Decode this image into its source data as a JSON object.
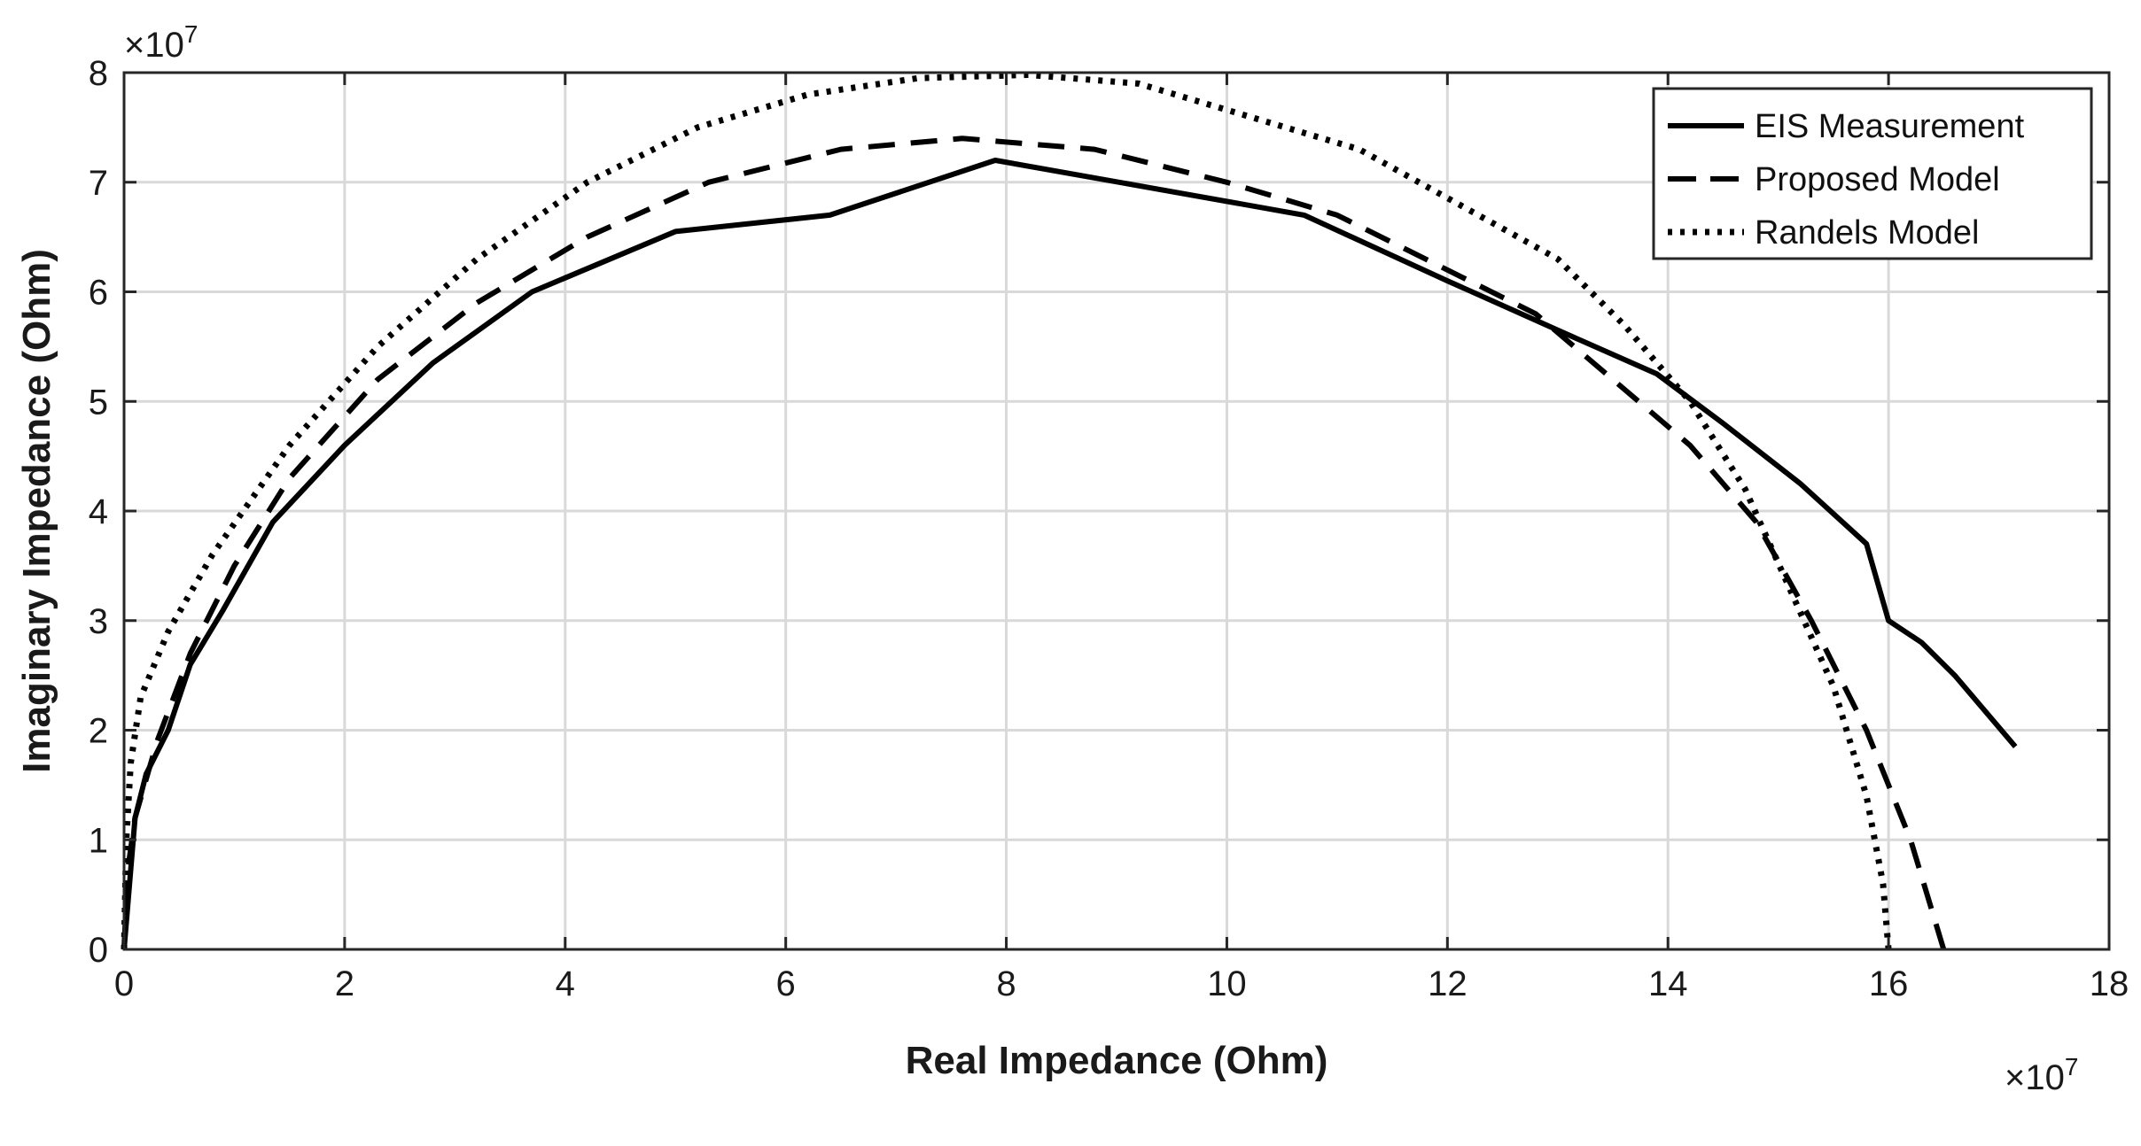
{
  "chart_data": {
    "type": "line",
    "title": "",
    "xlabel": "Real Impedance (Ohm)",
    "ylabel": "Imaginary Impedance (Ohm)",
    "x_multiplier": "×10",
    "x_exponent": "7",
    "y_multiplier": "×10",
    "y_exponent": "7",
    "xlim": [
      0,
      18
    ],
    "ylim": [
      0,
      8
    ],
    "xticks": [
      "0",
      "2",
      "4",
      "6",
      "8",
      "10",
      "12",
      "14",
      "16",
      "18"
    ],
    "yticks": [
      "0",
      "1",
      "2",
      "3",
      "4",
      "5",
      "6",
      "7",
      "8"
    ],
    "grid": true,
    "legend_position": "top-right",
    "series": [
      {
        "name": "EIS Measurement",
        "style": "solid",
        "color": "#000000",
        "points": [
          [
            0,
            0
          ],
          [
            0.05,
            0.6
          ],
          [
            0.1,
            1.2
          ],
          [
            0.2,
            1.6
          ],
          [
            0.4,
            2.0
          ],
          [
            0.6,
            2.6
          ],
          [
            0.9,
            3.1
          ],
          [
            1.35,
            3.9
          ],
          [
            2.0,
            4.6
          ],
          [
            2.8,
            5.35
          ],
          [
            3.7,
            6.0
          ],
          [
            5.0,
            6.55
          ],
          [
            6.4,
            6.7
          ],
          [
            7.9,
            7.2
          ],
          [
            9.3,
            6.95
          ],
          [
            10.7,
            6.7
          ],
          [
            12.0,
            6.1
          ],
          [
            13.0,
            5.65
          ],
          [
            13.9,
            5.25
          ],
          [
            14.5,
            4.8
          ],
          [
            15.2,
            4.25
          ],
          [
            15.8,
            3.7
          ],
          [
            16.0,
            3.0
          ],
          [
            16.3,
            2.8
          ],
          [
            16.6,
            2.5
          ],
          [
            17.15,
            1.85
          ]
        ]
      },
      {
        "name": "Proposed Model",
        "style": "dashed",
        "color": "#000000",
        "points": [
          [
            0,
            0
          ],
          [
            0.03,
            0.7
          ],
          [
            0.1,
            1.2
          ],
          [
            0.3,
            1.9
          ],
          [
            0.6,
            2.7
          ],
          [
            1.0,
            3.5
          ],
          [
            1.5,
            4.3
          ],
          [
            2.3,
            5.2
          ],
          [
            3.2,
            5.9
          ],
          [
            4.2,
            6.5
          ],
          [
            5.3,
            7.0
          ],
          [
            6.5,
            7.3
          ],
          [
            7.6,
            7.4
          ],
          [
            8.8,
            7.3
          ],
          [
            10.0,
            7.0
          ],
          [
            11.0,
            6.7
          ],
          [
            12.0,
            6.2
          ],
          [
            12.8,
            5.8
          ],
          [
            13.5,
            5.2
          ],
          [
            14.2,
            4.6
          ],
          [
            14.8,
            3.9
          ],
          [
            15.3,
            3.0
          ],
          [
            15.8,
            2.0
          ],
          [
            16.2,
            1.0
          ],
          [
            16.5,
            0.0
          ]
        ]
      },
      {
        "name": "Randels Model",
        "style": "dotted",
        "color": "#000000",
        "points": [
          [
            0,
            0
          ],
          [
            0.02,
            1.0
          ],
          [
            0.06,
            1.7
          ],
          [
            0.15,
            2.3
          ],
          [
            0.4,
            2.9
          ],
          [
            0.8,
            3.6
          ],
          [
            1.5,
            4.6
          ],
          [
            2.3,
            5.5
          ],
          [
            3.2,
            6.3
          ],
          [
            4.2,
            7.0
          ],
          [
            5.2,
            7.5
          ],
          [
            6.2,
            7.8
          ],
          [
            7.2,
            7.95
          ],
          [
            8.2,
            7.98
          ],
          [
            9.2,
            7.9
          ],
          [
            10.2,
            7.6
          ],
          [
            11.2,
            7.3
          ],
          [
            12.1,
            6.8
          ],
          [
            13.0,
            6.3
          ],
          [
            13.6,
            5.7
          ],
          [
            14.2,
            5.0
          ],
          [
            14.7,
            4.2
          ],
          [
            15.1,
            3.3
          ],
          [
            15.5,
            2.4
          ],
          [
            15.8,
            1.4
          ],
          [
            15.95,
            0.6
          ],
          [
            16.0,
            0.0
          ]
        ]
      }
    ]
  }
}
